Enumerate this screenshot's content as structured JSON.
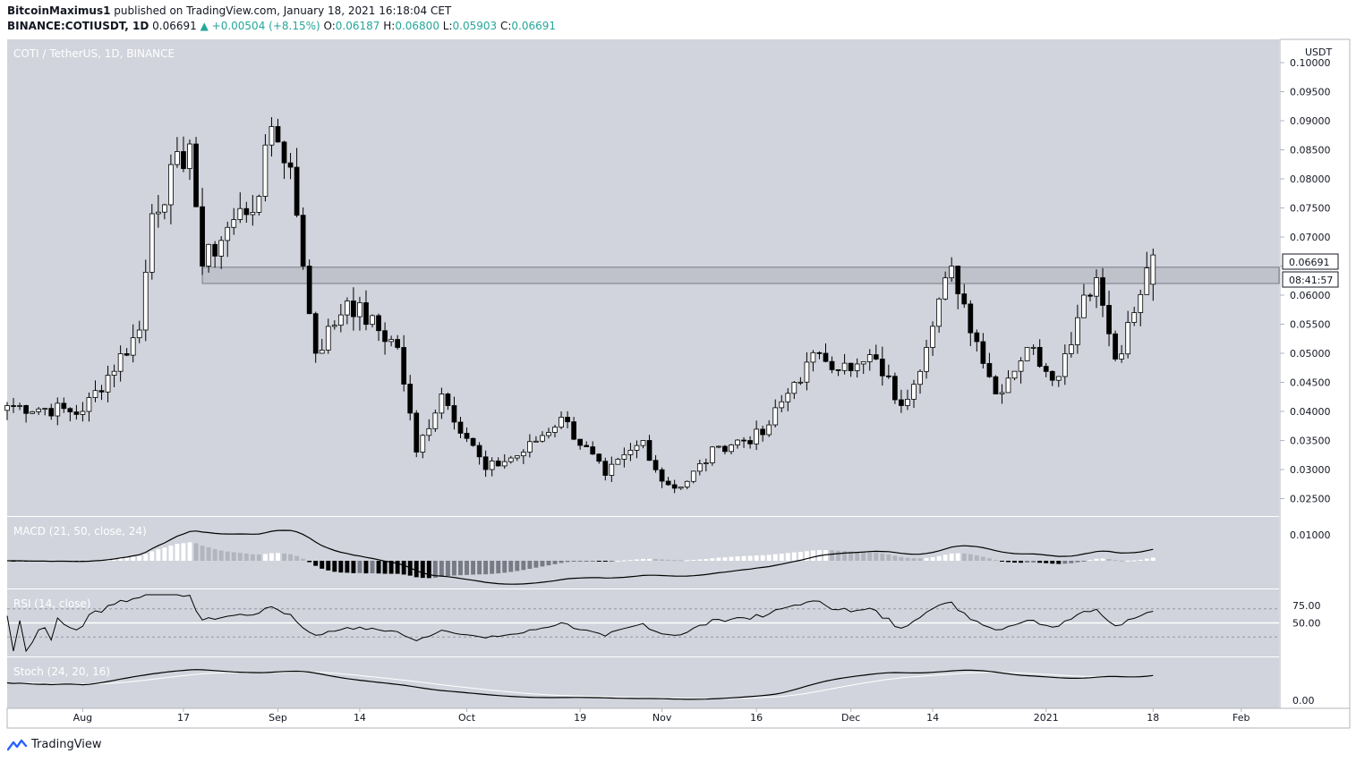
{
  "header": {
    "author": "BitcoinMaximus1",
    "published_text": "published on TradingView.com, January 18, 2021 16:18:04 CET",
    "symbol": "BINANCE:COTIUSDT, 1D",
    "last": "0.06691",
    "change": "▲ +0.00504 (+8.15%)",
    "o_label": "O:",
    "o_value": "0.06187",
    "h_label": "H:",
    "h_value": "0.06800",
    "l_label": "L:",
    "l_value": "0.05903",
    "c_label": "C:",
    "c_value": "0.06691"
  },
  "footer": {
    "brand": "TradingView"
  },
  "colors": {
    "pane_bg": "#d1d4dc",
    "axis_bg": "#ffffff",
    "candle_up": "#ffffff",
    "candle_down": "#000000",
    "zone": "#bfc2ca",
    "text": "#131722",
    "pane_label": "#ffffff"
  },
  "chart_data": {
    "type": "candlestick",
    "title": "COTI / TetherUS, 1D, BINANCE",
    "y_unit": "USDT",
    "ylim": [
      0.022,
      0.104
    ],
    "y_ticks": [
      "0.02500",
      "0.03000",
      "0.03500",
      "0.04000",
      "0.04500",
      "0.05000",
      "0.05500",
      "0.06000",
      "0.06500",
      "0.07000",
      "0.07500",
      "0.08000",
      "0.08500",
      "0.09000",
      "0.09500",
      "0.10000"
    ],
    "x_ticks": [
      {
        "label": "Aug",
        "date": "2020-08-01"
      },
      {
        "label": "17",
        "date": "2020-08-17"
      },
      {
        "label": "Sep",
        "date": "2020-09-01"
      },
      {
        "label": "14",
        "date": "2020-09-14"
      },
      {
        "label": "Oct",
        "date": "2020-10-01"
      },
      {
        "label": "19",
        "date": "2020-10-19"
      },
      {
        "label": "Nov",
        "date": "2020-11-01"
      },
      {
        "label": "16",
        "date": "2020-11-16"
      },
      {
        "label": "Dec",
        "date": "2020-12-01"
      },
      {
        "label": "14",
        "date": "2020-12-14"
      },
      {
        "label": "2021",
        "date": "2021-01-01"
      },
      {
        "label": "18",
        "date": "2021-01-18"
      },
      {
        "label": "Feb",
        "date": "2021-02-01"
      }
    ],
    "x_range": [
      "2020-07-20",
      "2021-02-07"
    ],
    "price_label": "0.06691",
    "countdown_label": "08:41:57",
    "zone": {
      "from_date": "2020-08-20",
      "to_date": "2021-02-07",
      "low": 0.062,
      "high": 0.0648
    },
    "key_closes": [
      {
        "date": "2020-07-20",
        "close": 0.041
      },
      {
        "date": "2020-08-01",
        "close": 0.04
      },
      {
        "date": "2020-08-10",
        "close": 0.054
      },
      {
        "date": "2020-08-12",
        "close": 0.074
      },
      {
        "date": "2020-08-18",
        "close": 0.086
      },
      {
        "date": "2020-08-20",
        "close": 0.065
      },
      {
        "date": "2020-08-25",
        "close": 0.073
      },
      {
        "date": "2020-08-29",
        "close": 0.077
      },
      {
        "date": "2020-08-31",
        "close": 0.089
      },
      {
        "date": "2020-09-03",
        "close": 0.082
      },
      {
        "date": "2020-09-05",
        "close": 0.065
      },
      {
        "date": "2020-09-07",
        "close": 0.05
      },
      {
        "date": "2020-09-12",
        "close": 0.059
      },
      {
        "date": "2020-09-20",
        "close": 0.051
      },
      {
        "date": "2020-09-23",
        "close": 0.033
      },
      {
        "date": "2020-09-27",
        "close": 0.043
      },
      {
        "date": "2020-10-04",
        "close": 0.03
      },
      {
        "date": "2020-10-10",
        "close": 0.033
      },
      {
        "date": "2020-10-16",
        "close": 0.039
      },
      {
        "date": "2020-10-23",
        "close": 0.029
      },
      {
        "date": "2020-10-29",
        "close": 0.035
      },
      {
        "date": "2020-11-01",
        "close": 0.028
      },
      {
        "date": "2020-11-04",
        "close": 0.027
      },
      {
        "date": "2020-11-10",
        "close": 0.034
      },
      {
        "date": "2020-11-17",
        "close": 0.036
      },
      {
        "date": "2020-11-22",
        "close": 0.045
      },
      {
        "date": "2020-11-26",
        "close": 0.05
      },
      {
        "date": "2020-12-01",
        "close": 0.047
      },
      {
        "date": "2020-12-05",
        "close": 0.049
      },
      {
        "date": "2020-12-09",
        "close": 0.041
      },
      {
        "date": "2020-12-13",
        "close": 0.051
      },
      {
        "date": "2020-12-17",
        "close": 0.065
      },
      {
        "date": "2020-12-21",
        "close": 0.052
      },
      {
        "date": "2020-12-24",
        "close": 0.043
      },
      {
        "date": "2020-12-29",
        "close": 0.051
      },
      {
        "date": "2021-01-03",
        "close": 0.046
      },
      {
        "date": "2021-01-07",
        "close": 0.06
      },
      {
        "date": "2021-01-09",
        "close": 0.063
      },
      {
        "date": "2021-01-12",
        "close": 0.049
      },
      {
        "date": "2021-01-15",
        "close": 0.057
      },
      {
        "date": "2021-01-18",
        "close": 0.06691,
        "open": 0.06187,
        "high": 0.068,
        "low": 0.05903
      }
    ],
    "indicators": {
      "macd": {
        "label": "MACD (21, 50, close, 24)",
        "y_ticks": [
          "0.01000"
        ]
      },
      "rsi": {
        "label": "RSI (14, close)",
        "y_ticks": [
          "75.00",
          "50.00"
        ],
        "levels": [
          70,
          50,
          30
        ]
      },
      "stoch": {
        "label": "Stoch (24, 20, 16)",
        "y_ticks": [
          "0.00"
        ]
      }
    }
  }
}
